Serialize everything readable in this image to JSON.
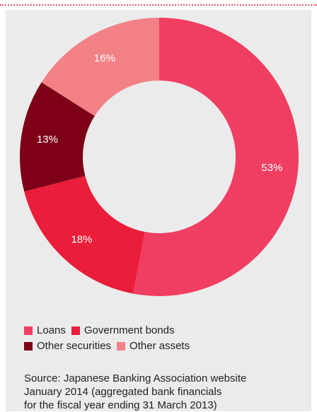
{
  "chart_data": {
    "type": "pie",
    "donut": true,
    "categories": [
      "Loans",
      "Government bonds",
      "Other securities",
      "Other assets"
    ],
    "values": [
      53,
      18,
      13,
      16
    ],
    "value_labels": [
      "53%",
      "18%",
      "13%",
      "16%"
    ],
    "colors": [
      "#f03e62",
      "#ea1d3b",
      "#7d0017",
      "#f28186"
    ],
    "legend_position": "bottom-left"
  },
  "legend": {
    "items": [
      {
        "label": "Loans",
        "color": "#f03e62"
      },
      {
        "label": "Government bonds",
        "color": "#ea1d3b"
      },
      {
        "label": "Other securities",
        "color": "#7d0017"
      },
      {
        "label": "Other assets",
        "color": "#f28186"
      }
    ]
  },
  "source": {
    "lines": [
      "Source: Japanese Banking Association website",
      "January 2014 (aggregated bank financials",
      "for the fiscal year ending 31 March 2013)"
    ]
  },
  "colors": {
    "background": "#ebebeb",
    "rule": "#e8546a",
    "text": "#222222"
  }
}
